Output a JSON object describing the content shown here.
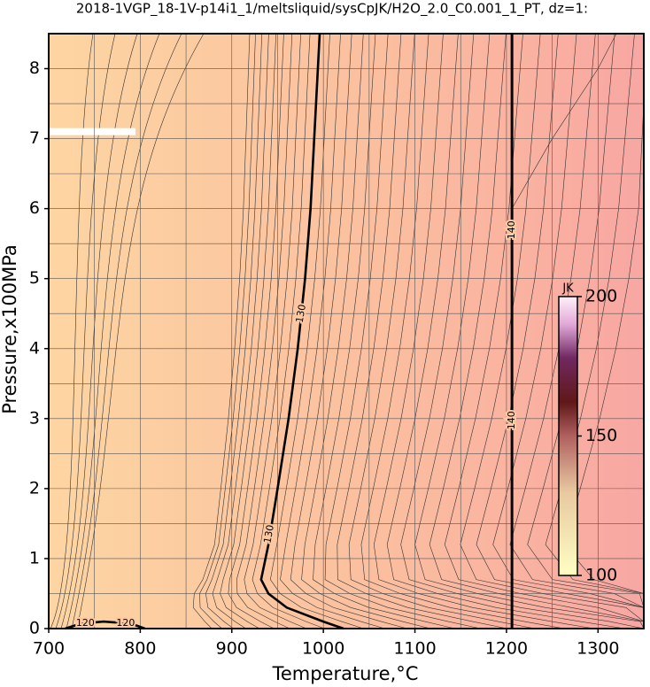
{
  "chart_data": {
    "type": "contour",
    "title": "2018-1VGP_18-1V-p14i1_1/meltsliquid/sysCpJK/H2O_2.0_C0.001_1_PT, dz=1:",
    "x_label": "Temperature,°C",
    "y_label": "Pressure,x100MPa",
    "xlim": [
      700,
      1350
    ],
    "ylim": [
      0,
      8.5
    ],
    "xticks": [
      700,
      800,
      900,
      1000,
      1100,
      1200,
      1300
    ],
    "yticks": [
      0,
      1,
      2,
      3,
      4,
      5,
      6,
      7,
      8
    ],
    "xgrid": [
      750,
      800,
      850,
      900,
      950,
      1000,
      1050,
      1100,
      1150,
      1200,
      1250,
      1300
    ],
    "ygrid": [
      0.5,
      1,
      1.5,
      2,
      2.5,
      3,
      3.5,
      4,
      4.5,
      5,
      5.5,
      6,
      6.5,
      7,
      7.5,
      8
    ],
    "contours": [
      {
        "level": 130,
        "x": [
          1022,
          1000,
          960,
          940,
          932,
          940,
          950,
          962,
          972,
          980,
          986,
          992,
          996
        ],
        "y": [
          0,
          0.1,
          0.3,
          0.5,
          0.7,
          1.2,
          2,
          3,
          4,
          5,
          6,
          7.5,
          8.5
        ]
      },
      {
        "level": 140,
        "x": [
          1206,
          1206
        ],
        "y": [
          0,
          8.5
        ]
      },
      {
        "level": 120,
        "x": [
          718,
          735,
          760,
          790,
          805
        ],
        "y": [
          0,
          0.07,
          0.1,
          0.07,
          0
        ]
      }
    ],
    "colorbar": {
      "label": "JK",
      "lim": [
        100,
        200
      ],
      "ticks": [
        100,
        150,
        200
      ]
    }
  }
}
